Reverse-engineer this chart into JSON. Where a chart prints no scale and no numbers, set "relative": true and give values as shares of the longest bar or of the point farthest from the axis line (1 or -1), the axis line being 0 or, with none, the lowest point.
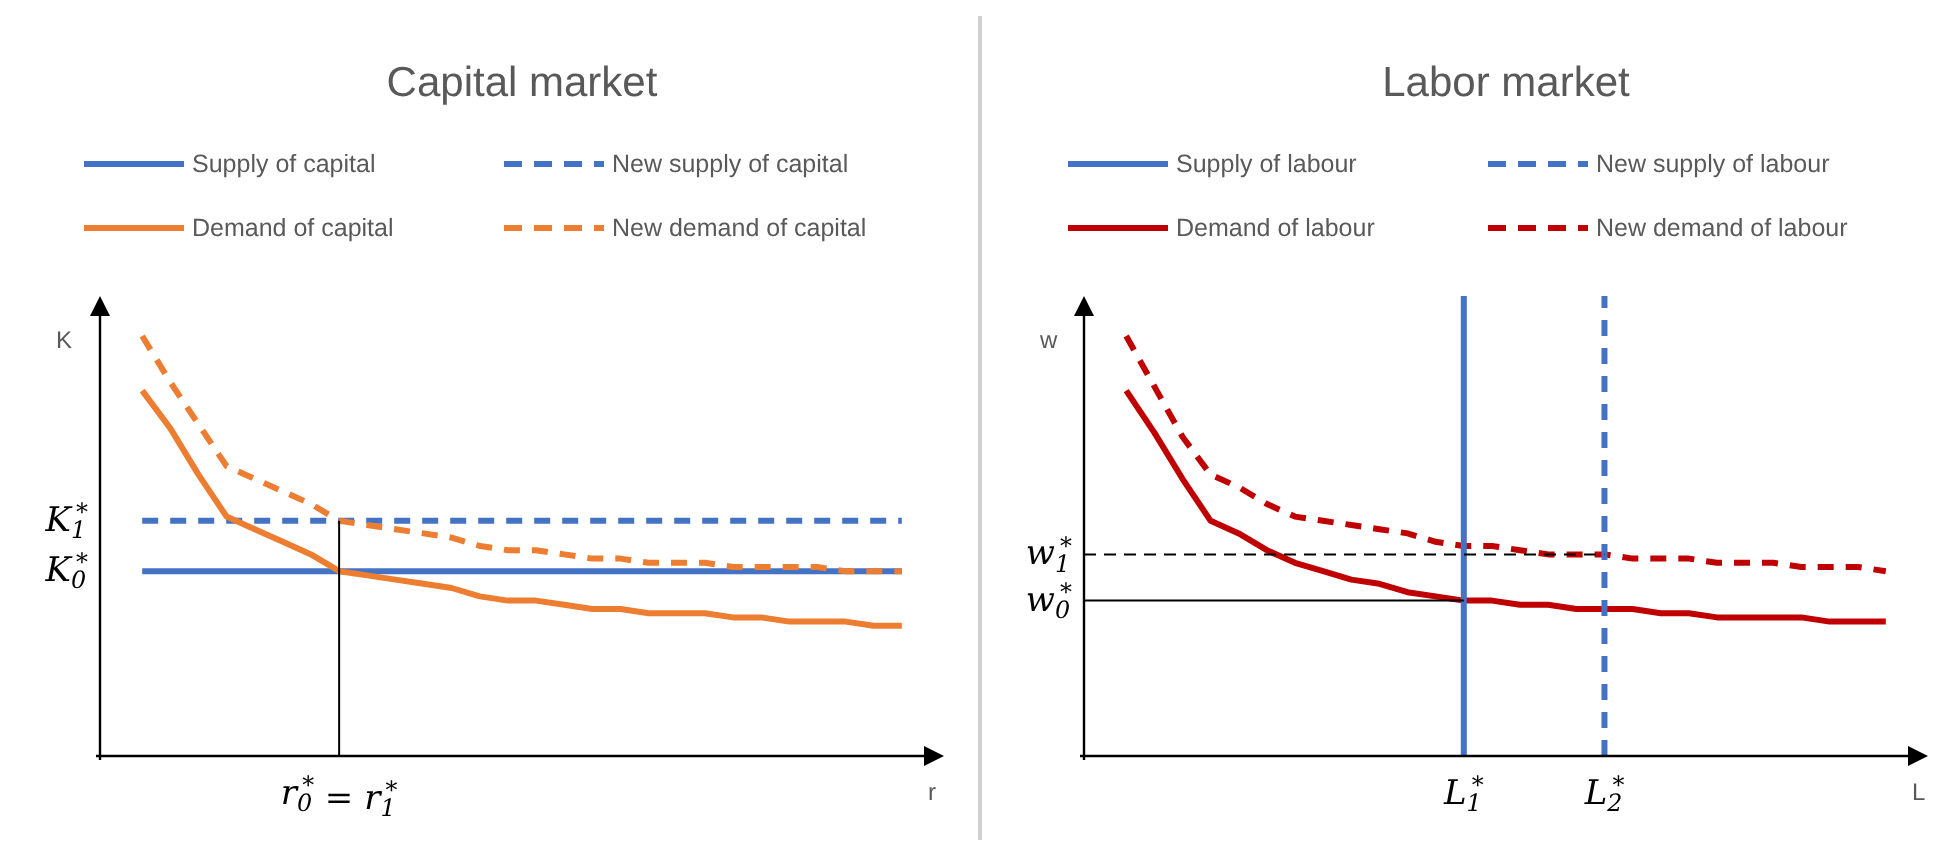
{
  "chart_data": [
    {
      "type": "line",
      "title": "Capital market",
      "xlabel": "r",
      "ylabel": "K",
      "relative": true,
      "legend": "top",
      "categories": [
        null,
        null,
        null,
        null,
        null,
        null,
        null,
        null,
        null,
        null,
        null,
        null,
        null,
        null,
        null,
        null,
        null,
        null,
        null,
        null,
        null,
        null,
        null,
        null,
        null,
        null,
        null,
        null,
        null,
        null
      ],
      "series": [
        {
          "name": "Supply of capital",
          "color": "#4472c4",
          "line_style": "solid",
          "values": [
            null,
            0.44,
            0.44,
            0.44,
            0.44,
            0.44,
            0.44,
            0.44,
            0.44,
            0.44,
            0.44,
            0.44,
            0.44,
            0.44,
            0.44,
            0.44,
            0.44,
            0.44,
            0.44,
            0.44,
            0.44,
            0.44,
            0.44,
            0.44,
            0.44,
            0.44,
            0.44,
            0.44,
            0.44,
            null
          ]
        },
        {
          "name": "New supply of capital",
          "color": "#4472c4",
          "line_style": "dashed",
          "values": [
            null,
            0.56,
            0.56,
            0.56,
            0.56,
            0.56,
            0.56,
            0.56,
            0.56,
            0.56,
            0.56,
            0.56,
            0.56,
            0.56,
            0.56,
            0.56,
            0.56,
            0.56,
            0.56,
            0.56,
            0.56,
            0.56,
            0.56,
            0.56,
            0.56,
            0.56,
            0.56,
            0.56,
            0.56,
            null
          ]
        },
        {
          "name": "Demand of capital",
          "color": "#ed7d31",
          "line_style": "solid",
          "values": [
            null,
            0.87,
            0.78,
            0.67,
            0.57,
            0.54,
            0.51,
            0.48,
            0.44,
            0.43,
            0.42,
            0.41,
            0.4,
            0.38,
            0.37,
            0.37,
            0.36,
            0.35,
            0.35,
            0.34,
            0.34,
            0.34,
            0.33,
            0.33,
            0.32,
            0.32,
            0.32,
            0.31,
            0.31,
            null
          ]
        },
        {
          "name": "New demand of capital",
          "color": "#ed7d31",
          "line_style": "dashed",
          "values": [
            null,
            1,
            0.89,
            0.79,
            0.69,
            0.66,
            0.63,
            0.6,
            0.56,
            0.55,
            0.54,
            0.53,
            0.52,
            0.5,
            0.49,
            0.49,
            0.48,
            0.47,
            0.47,
            0.46,
            0.46,
            0.46,
            0.45,
            0.45,
            0.45,
            0.45,
            0.44,
            0.44,
            0.44,
            null
          ]
        }
      ],
      "annotations": [
        "K$_{1}$$^{*}$",
        "K$_{0}$$^{*}$",
        "r$_{0}$$^{*}$ = r$_{1}$$^{*}$"
      ]
    },
    {
      "type": "line",
      "title": "Labor market",
      "xlabel": "L",
      "ylabel": "w",
      "relative": true,
      "legend": "top",
      "categories": [
        null,
        null,
        null,
        null,
        null,
        null,
        null,
        null,
        null,
        null,
        null,
        null,
        null,
        "L$_{1}$$^{*}$",
        null,
        null,
        null,
        null,
        "L$_{2}$$^{*}$",
        null,
        null,
        null,
        null,
        null,
        null,
        null,
        null,
        null,
        null,
        null
      ],
      "series": [
        {
          "name": "Demand of labour",
          "color": "#c00000",
          "line_style": "solid",
          "values": [
            null,
            0.87,
            0.77,
            0.66,
            0.56,
            0.53,
            0.49,
            0.46,
            0.44,
            0.42,
            0.41,
            0.39,
            0.38,
            0.37,
            0.37,
            0.36,
            0.36,
            0.35,
            0.35,
            0.35,
            0.34,
            0.34,
            0.33,
            0.33,
            0.33,
            0.33,
            0.32,
            0.32,
            0.32,
            null
          ]
        },
        {
          "name": "New demand of labour",
          "color": "#c00000",
          "line_style": "dashed",
          "values": [
            null,
            1,
            0.88,
            0.76,
            0.67,
            0.64,
            0.6,
            0.57,
            0.56,
            0.55,
            0.54,
            0.53,
            0.51,
            0.5,
            0.5,
            0.49,
            0.48,
            0.48,
            0.48,
            0.47,
            0.47,
            0.47,
            0.46,
            0.46,
            0.46,
            0.45,
            0.45,
            0.45,
            0.44,
            null
          ]
        }
      ],
      "ref_lines": [
        {
          "axis": "x",
          "value": "L$_{1}$$^{*}$",
          "label": "Supply of labour",
          "color": "#4472c4",
          "line_style": "solid"
        },
        {
          "axis": "x",
          "value": "L$_{2}$$^{*}$",
          "label": "New supply of labour",
          "color": "#4472c4",
          "line_style": "dashed"
        },
        {
          "axis": "y",
          "value": 0.48,
          "label": "w$_{1}$$^{*}$",
          "color": "#000000",
          "line_style": "dashed"
        },
        {
          "axis": "y",
          "value": 0.37,
          "label": "w$_{0}$$^{*}$",
          "color": "#000000",
          "line_style": "solid"
        }
      ]
    }
  ]
}
